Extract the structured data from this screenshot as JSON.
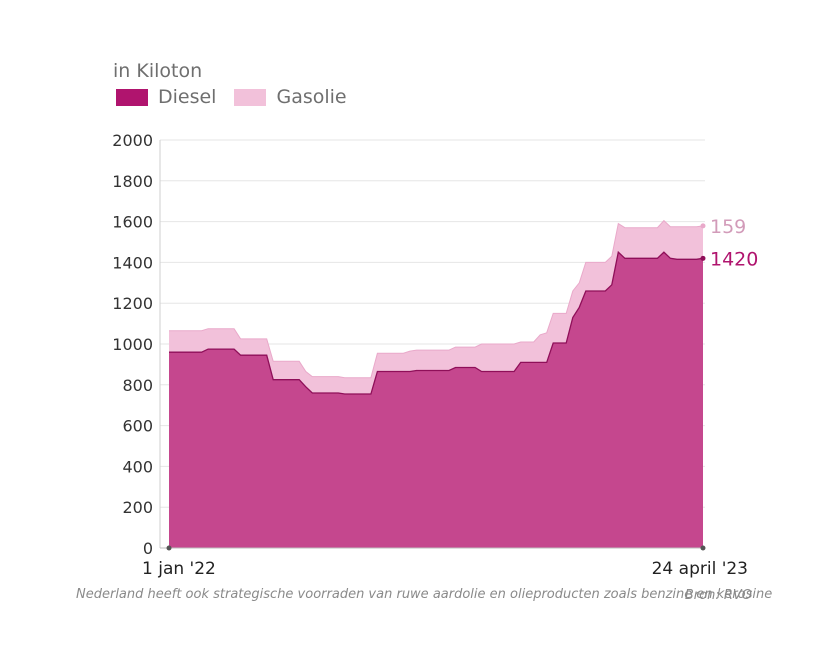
{
  "unit_label": "in Kiloton",
  "colors": {
    "diesel": "#b0146e",
    "diesel_fill": "#c5478e",
    "gasolie": "#f2c1da",
    "gasolie_label": "#d29bb9"
  },
  "chart_data": {
    "type": "area",
    "stacked": true,
    "x_start_label": "1 jan '22",
    "x_end_label": "24 april '23",
    "ylim": [
      0,
      2000
    ],
    "yticks": [
      "0",
      "200",
      "400",
      "600",
      "800",
      "1000",
      "1200",
      "1400",
      "1600",
      "1800",
      "2000"
    ],
    "grid": true,
    "legend_position": "top-left",
    "series": [
      {
        "name": "Diesel",
        "end_label": "1420",
        "values": [
          960,
          960,
          960,
          960,
          960,
          960,
          975,
          975,
          975,
          975,
          975,
          945,
          945,
          945,
          945,
          945,
          825,
          825,
          825,
          825,
          825,
          790,
          760,
          760,
          760,
          760,
          760,
          755,
          755,
          755,
          755,
          755,
          865,
          865,
          865,
          865,
          865,
          865,
          870,
          870,
          870,
          870,
          870,
          870,
          885,
          885,
          885,
          885,
          865,
          865,
          865,
          865,
          865,
          865,
          910,
          910,
          910,
          910,
          910,
          1005,
          1005,
          1005,
          1130,
          1180,
          1260,
          1260,
          1260,
          1260,
          1290,
          1450,
          1420,
          1420,
          1420,
          1420,
          1420,
          1420,
          1450,
          1420,
          1415,
          1415,
          1415,
          1415,
          1420
        ]
      },
      {
        "name": "Gasolie",
        "end_label": "159",
        "values": [
          105,
          105,
          105,
          105,
          105,
          105,
          100,
          100,
          100,
          100,
          100,
          80,
          80,
          80,
          80,
          80,
          90,
          90,
          90,
          90,
          90,
          75,
          80,
          80,
          80,
          80,
          80,
          80,
          80,
          80,
          80,
          80,
          90,
          90,
          90,
          90,
          90,
          100,
          100,
          100,
          100,
          100,
          100,
          100,
          100,
          100,
          100,
          100,
          135,
          135,
          135,
          135,
          135,
          135,
          100,
          100,
          100,
          135,
          145,
          145,
          145,
          145,
          130,
          120,
          140,
          140,
          140,
          140,
          140,
          140,
          150,
          150,
          150,
          150,
          150,
          150,
          155,
          155,
          160,
          160,
          160,
          160,
          159
        ]
      }
    ]
  },
  "footnote": "Nederland heeft ook strategische voorraden van ruwe aardolie en olieproducten zoals benzine en kerosine",
  "source": "Bron: RVO"
}
